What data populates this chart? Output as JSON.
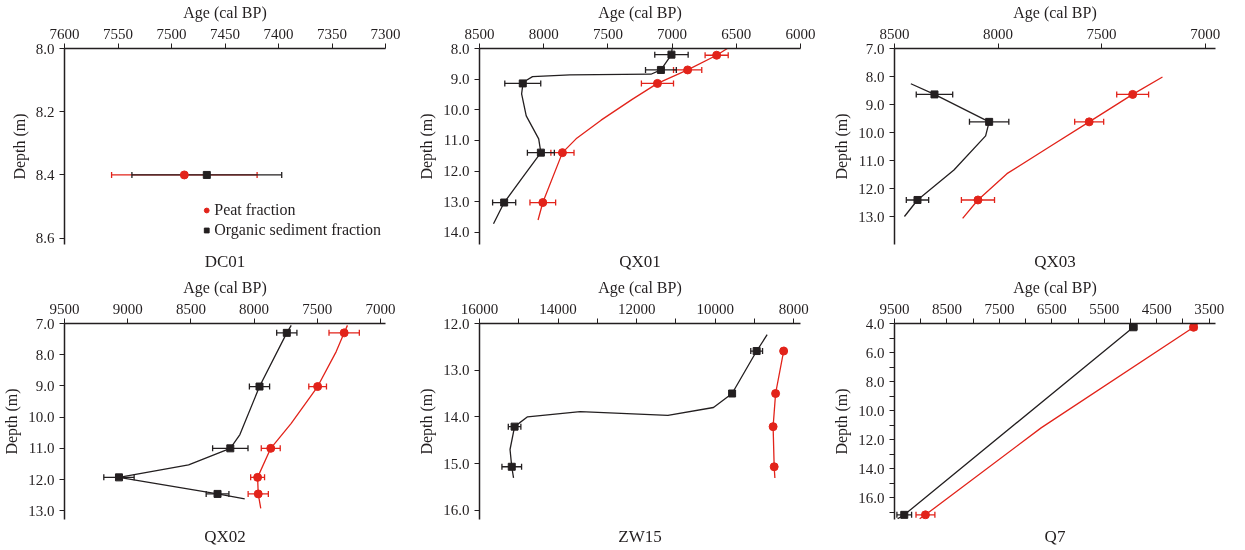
{
  "chart_data": [
    {
      "type": "scatter",
      "title": "DC01",
      "xlabel": "Age (cal BP)",
      "ylabel": "Depth (m)",
      "legend": "bottom right",
      "xlim": [
        7600,
        7300
      ],
      "xticks": [
        7600,
        7550,
        7500,
        7450,
        7400,
        7350,
        7300
      ],
      "ylim": [
        8.62,
        8.0
      ],
      "yticks": [
        {
          "value": 8.0,
          "label": "8.0"
        },
        {
          "value": 8.2,
          "label": "8.2"
        },
        {
          "value": 8.4,
          "label": "8.4"
        },
        {
          "value": 8.6,
          "label": "8.6"
        }
      ],
      "series": [
        {
          "name": "Peat fraction",
          "color": "#e2231a",
          "marker": "circle",
          "x": [
            7488
          ],
          "values": [
            8.4
          ],
          "xerrors": [
            68
          ]
        },
        {
          "name": "Organic sediment fraction",
          "color": "#231f20",
          "marker": "square",
          "x": [
            7467
          ],
          "values": [
            8.4
          ],
          "xerrors": [
            70
          ]
        }
      ]
    },
    {
      "type": "scatter",
      "title": "QX01",
      "xlabel": "Age (cal BP)",
      "ylabel": "Depth (m)",
      "xlim": [
        8500,
        6000
      ],
      "xticks": [
        8500,
        8000,
        7500,
        7000,
        6500,
        6000
      ],
      "ylim": [
        14.4,
        8.0
      ],
      "yticks": [
        {
          "value": 8,
          "label": "8.0"
        },
        {
          "value": 9,
          "label": "9.0"
        },
        {
          "value": 10,
          "label": "10.0"
        },
        {
          "value": 11,
          "label": "11.0"
        },
        {
          "value": 12,
          "label": "12.0"
        },
        {
          "value": 13,
          "label": "13.0"
        },
        {
          "value": 14,
          "label": "14.0"
        }
      ],
      "series": [
        {
          "type": "line",
          "color": "#e2231a",
          "x": [
            6570,
            6653,
            6879,
            7114,
            7311,
            7553,
            7748,
            7854,
            8007,
            8044
          ],
          "values": [
            8.0,
            8.22,
            8.7,
            9.14,
            9.66,
            10.34,
            10.95,
            11.4,
            13.03,
            13.6
          ]
        },
        {
          "type": "line",
          "color": "#231f20",
          "x": [
            7000,
            7005,
            7087,
            7165,
            7796,
            8087,
            8160,
            8172,
            8136,
            8039,
            8022,
            8160,
            8308,
            8391
          ],
          "values": [
            8.0,
            8.2,
            8.7,
            8.84,
            8.86,
            8.92,
            9.1,
            9.48,
            10.2,
            10.95,
            11.4,
            12.18,
            13.03,
            13.72
          ]
        },
        {
          "color": "#e2231a",
          "marker": "circle",
          "x": [
            6653,
            6879,
            7114,
            7854,
            8007
          ],
          "values": [
            8.22,
            8.7,
            9.14,
            11.4,
            13.03
          ],
          "xerrors": [
            90,
            110,
            125,
            90,
            100
          ]
        },
        {
          "color": "#231f20",
          "marker": "square",
          "x": [
            7005,
            7087,
            8163,
            8022,
            8308
          ],
          "values": [
            8.2,
            8.7,
            9.14,
            11.4,
            13.03
          ],
          "xerrors": [
            130,
            120,
            140,
            105,
            90
          ]
        }
      ]
    },
    {
      "type": "scatter",
      "title": "QX03",
      "xlabel": "Age (cal BP)",
      "ylabel": "Depth (m)",
      "xlim": [
        8500,
        6950
      ],
      "xticks": [
        8500,
        8000,
        7500,
        7000
      ],
      "ylim": [
        14.0,
        7.0
      ],
      "yticks": [
        {
          "value": 7,
          "label": "7.0"
        },
        {
          "value": 8,
          "label": "8.0"
        },
        {
          "value": 9,
          "label": "9.0"
        },
        {
          "value": 10,
          "label": "10.0"
        },
        {
          "value": 11,
          "label": "11.0"
        },
        {
          "value": 12,
          "label": "12.0"
        },
        {
          "value": 13,
          "label": "13.0"
        }
      ],
      "series": [
        {
          "type": "line",
          "color": "#e2231a",
          "x": [
            7206,
            7350,
            7560,
            7753,
            7957,
            8097,
            8171
          ],
          "values": [
            8.02,
            8.64,
            9.62,
            10.52,
            11.47,
            12.41,
            13.07
          ]
        },
        {
          "type": "line",
          "color": "#231f20",
          "x": [
            8421,
            8307,
            8043,
            8060,
            8213,
            8389,
            8452
          ],
          "values": [
            8.26,
            8.64,
            9.62,
            10.12,
            11.34,
            12.41,
            13.0
          ]
        },
        {
          "color": "#e2231a",
          "marker": "circle",
          "x": [
            7350,
            7560,
            8097
          ],
          "values": [
            8.64,
            9.62,
            12.41
          ],
          "xerrors": [
            77,
            70,
            80
          ]
        },
        {
          "color": "#231f20",
          "marker": "square",
          "x": [
            8307,
            8043,
            8389
          ],
          "values": [
            8.64,
            9.62,
            12.41
          ],
          "xerrors": [
            88,
            95,
            54
          ]
        }
      ]
    },
    {
      "type": "scatter",
      "title": "QX02",
      "xlabel": "Age (cal BP)",
      "ylabel": "Depth (m)",
      "xlim": [
        9500,
        6960
      ],
      "xticks": [
        9500,
        9000,
        8500,
        8000,
        7500,
        7000
      ],
      "ylim": [
        13.28,
        7.0
      ],
      "yticks": [
        {
          "value": 7,
          "label": "7.0"
        },
        {
          "value": 8,
          "label": "8.0"
        },
        {
          "value": 9,
          "label": "9.0"
        },
        {
          "value": 10,
          "label": "10.0"
        },
        {
          "value": 11,
          "label": "11.0"
        },
        {
          "value": 12,
          "label": "12.0"
        },
        {
          "value": 13,
          "label": "13.0"
        }
      ],
      "series": [
        {
          "type": "line",
          "color": "#e2231a",
          "x": [
            7261,
            7287,
            7350,
            7497,
            7706,
            7868,
            7972,
            7967,
            7947
          ],
          "values": [
            7.06,
            7.3,
            7.9,
            9.02,
            10.2,
            11.0,
            11.93,
            12.46,
            12.92
          ]
        },
        {
          "type": "line",
          "color": "#231f20",
          "x": [
            7706,
            7741,
            7957,
            8112,
            8188,
            8518,
            9069,
            8289,
            8074
          ],
          "values": [
            7.06,
            7.3,
            9.02,
            10.56,
            11.0,
            11.53,
            11.93,
            12.46,
            12.62
          ]
        },
        {
          "color": "#e2231a",
          "marker": "circle",
          "x": [
            7287,
            7497,
            7868,
            7972,
            7967
          ],
          "values": [
            7.3,
            9.02,
            11.0,
            11.93,
            12.46
          ],
          "xerrors": [
            120,
            70,
            75,
            55,
            80
          ]
        },
        {
          "color": "#231f20",
          "marker": "square",
          "x": [
            7741,
            7957,
            8188,
            9069,
            8289
          ],
          "values": [
            7.3,
            9.02,
            11.0,
            11.93,
            12.46
          ],
          "xerrors": [
            80,
            80,
            140,
            120,
            90
          ]
        }
      ]
    },
    {
      "type": "scatter",
      "title": "ZW15",
      "xlabel": "Age (cal BP)",
      "ylabel": "Depth (m)",
      "xlim": [
        16000,
        7830
      ],
      "xticks": [
        16000,
        {
          "value": 15000,
          "label": null
        },
        14000,
        {
          "value": 13000,
          "label": null
        },
        12000,
        {
          "value": 11000,
          "label": null
        },
        10000,
        {
          "value": 9000,
          "label": null
        },
        8000
      ],
      "ylim": [
        16.2,
        12.0
      ],
      "yticks": [
        {
          "value": 12,
          "label": "12.0"
        },
        {
          "value": 13,
          "label": "13.0"
        },
        {
          "value": 14,
          "label": "14.0"
        },
        {
          "value": 15,
          "label": "15.0"
        },
        {
          "value": 16,
          "label": "16.0"
        }
      ],
      "series": [
        {
          "type": "line",
          "color": "#e2231a",
          "x": [
            8232,
            8259,
            8464,
            8527,
            8500,
            8482
          ],
          "values": [
            12.5,
            12.59,
            13.5,
            14.21,
            15.07,
            15.31
          ]
        },
        {
          "type": "line",
          "color": "#231f20",
          "x": [
            8679,
            8946,
            9571,
            10045,
            11205,
            13437,
            14777,
            15107,
            15223,
            15179,
            15134
          ],
          "values": [
            12.24,
            12.59,
            13.5,
            13.8,
            13.97,
            13.89,
            14.0,
            14.21,
            14.7,
            15.07,
            15.31
          ]
        },
        {
          "color": "#e2231a",
          "marker": "circle",
          "x": [
            8259,
            8464,
            8527,
            8500
          ],
          "values": [
            12.59,
            13.5,
            14.21,
            15.07
          ],
          "xerrors": [
            60,
            50,
            50,
            50
          ]
        },
        {
          "color": "#231f20",
          "marker": "square",
          "x": [
            8946,
            9571,
            15107,
            15179
          ],
          "values": [
            12.59,
            13.5,
            14.21,
            15.07
          ],
          "xerrors": [
            150,
            30,
            160,
            250
          ]
        }
      ]
    },
    {
      "type": "scatter",
      "title": "Q7",
      "xlabel": "Age (cal BP)",
      "ylabel": "Depth (m)",
      "xlim": [
        9500,
        3380
      ],
      "xticks": [
        9500,
        {
          "value": 9000,
          "label": null
        },
        8500,
        {
          "value": 8000,
          "label": null
        },
        7500,
        {
          "value": 7000,
          "label": null
        },
        6500,
        {
          "value": 6000,
          "label": null
        },
        5500,
        {
          "value": 5000,
          "label": null
        },
        4500,
        {
          "value": 4000,
          "label": null
        },
        3500
      ],
      "ylim": [
        17.5,
        4.0
      ],
      "yticks": [
        {
          "value": 4,
          "label": "4.0"
        },
        {
          "value": 5,
          "label": null
        },
        {
          "value": 6,
          "label": "6.0"
        },
        {
          "value": 7,
          "label": null
        },
        {
          "value": 8,
          "label": "8.0"
        },
        {
          "value": 9,
          "label": null
        },
        {
          "value": 10,
          "label": "10.0"
        },
        {
          "value": 11,
          "label": null
        },
        {
          "value": 12,
          "label": "12.0"
        },
        {
          "value": 13,
          "label": null
        },
        {
          "value": 14,
          "label": "14.0"
        },
        {
          "value": 15,
          "label": null
        },
        {
          "value": 16,
          "label": "16.0"
        },
        {
          "value": 17,
          "label": null
        }
      ],
      "series": [
        {
          "type": "line",
          "color": "#e2231a",
          "x": [
            3724,
            3798,
            6705,
            8910,
            9020
          ],
          "values": [
            4.05,
            4.26,
            11.19,
            17.18,
            17.45
          ]
        },
        {
          "type": "line",
          "color": "#231f20",
          "x": [
            4904,
            4947,
            9314,
            9440
          ],
          "values": [
            4.05,
            4.26,
            17.18,
            17.45
          ]
        },
        {
          "color": "#e2231a",
          "marker": "circle",
          "x": [
            3798,
            8910
          ],
          "values": [
            4.26,
            17.18
          ],
          "xerrors": [
            60,
            180
          ]
        },
        {
          "color": "#231f20",
          "marker": "square",
          "x": [
            4947,
            9314
          ],
          "values": [
            4.26,
            17.18
          ],
          "xerrors": [
            70,
            140
          ]
        }
      ]
    }
  ]
}
